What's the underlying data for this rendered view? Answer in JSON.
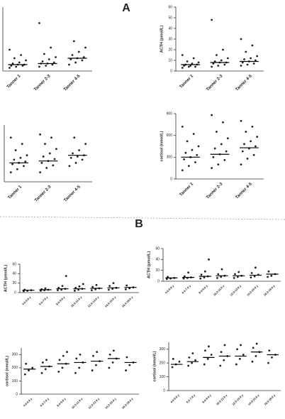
{
  "panels": [
    "A",
    "B"
  ],
  "chart_data": [
    {
      "type": "dot",
      "categories": [
        "Tanner 1",
        "Tanner 2-3",
        "Tanner 4-5"
      ],
      "ylim": [
        0,
        60
      ],
      "points": [
        [
          3,
          4,
          5,
          5,
          6,
          6,
          7,
          8,
          10,
          12,
          15,
          20
        ],
        [
          4,
          5,
          6,
          7,
          7,
          8,
          9,
          11,
          13,
          16,
          22,
          45
        ],
        [
          6,
          8,
          10,
          11,
          12,
          13,
          15,
          18,
          22,
          28
        ]
      ],
      "medians": [
        6,
        7,
        12
      ]
    },
    {
      "type": "dot",
      "y_label": "ACTH (pmol/L)",
      "categories": [
        "Tanner 1",
        "Tanner 2-3",
        "Tanner 4-5"
      ],
      "ylim": [
        0,
        60
      ],
      "yticks": [
        0,
        10,
        20,
        30,
        40,
        50,
        60
      ],
      "points": [
        [
          3,
          4,
          4,
          5,
          5,
          6,
          6,
          7,
          8,
          9,
          12,
          15
        ],
        [
          4,
          5,
          6,
          7,
          8,
          8,
          9,
          10,
          12,
          15,
          20,
          48
        ],
        [
          5,
          6,
          7,
          8,
          9,
          10,
          11,
          12,
          14,
          18,
          24,
          30
        ]
      ],
      "medians": [
        6,
        8,
        9
      ]
    },
    {
      "type": "dot",
      "categories": [
        "Tanner 1",
        "Tanner 2-3",
        "Tanner 4-5"
      ],
      "ylim": [
        0,
        900
      ],
      "points": [
        [
          150,
          200,
          250,
          280,
          300,
          320,
          350,
          380,
          420,
          500,
          600,
          700
        ],
        [
          150,
          220,
          260,
          300,
          330,
          360,
          400,
          450,
          520,
          600,
          700,
          750
        ],
        [
          250,
          300,
          350,
          380,
          400,
          420,
          450,
          500,
          600,
          700
        ]
      ],
      "medians": [
        300,
        330,
        420
      ]
    },
    {
      "type": "dot",
      "y_label": "cortisol (nmol/L)",
      "categories": [
        "Tanner 1",
        "Tanner 2-3",
        "Tanner 4-5"
      ],
      "ylim": [
        0,
        900
      ],
      "yticks": [
        0,
        300,
        600,
        900
      ],
      "points": [
        [
          120,
          180,
          230,
          270,
          300,
          330,
          360,
          400,
          450,
          520,
          620,
          720
        ],
        [
          150,
          200,
          260,
          300,
          340,
          380,
          420,
          480,
          560,
          650,
          780,
          880
        ],
        [
          200,
          280,
          330,
          380,
          420,
          450,
          480,
          520,
          580,
          650,
          720,
          800
        ]
      ],
      "medians": [
        300,
        340,
        430
      ]
    },
    {
      "type": "dot",
      "y_label": "ACTH (pmol/L)",
      "categories": [
        "4.0-5.9 y",
        "6.0-7.9 y",
        "8.0-9.9 y",
        "10.0-11.9 y",
        "12.0-13.9 y",
        "14.0-15.9 y",
        "16.0-18.9 y"
      ],
      "ylim": [
        0,
        60
      ],
      "yticks": [
        0,
        20,
        40,
        60
      ],
      "points": [
        [
          3,
          4,
          5,
          6
        ],
        [
          4,
          5,
          6,
          7,
          9
        ],
        [
          5,
          6,
          8,
          10,
          14,
          35
        ],
        [
          4,
          6,
          8,
          10,
          13,
          18
        ],
        [
          5,
          7,
          9,
          12,
          16
        ],
        [
          6,
          8,
          10,
          14,
          20
        ],
        [
          7,
          9,
          11,
          15
        ]
      ],
      "medians": [
        5,
        6,
        8,
        8,
        9,
        10,
        11
      ]
    },
    {
      "type": "dot",
      "y_label": "ACTH (pmol/L)",
      "categories": [
        "4.0-5.9 y",
        "6.0-7.9 y",
        "8.0-9.9 y",
        "10.0-11.9 y",
        "12.0-13.9 y",
        "14.0-15.9 y",
        "16.0-18.9 y"
      ],
      "ylim": [
        0,
        60
      ],
      "yticks": [
        0,
        20,
        40,
        60
      ],
      "points": [
        [
          4,
          5,
          6,
          8
        ],
        [
          5,
          6,
          7,
          9,
          16
        ],
        [
          5,
          7,
          9,
          12,
          18,
          40
        ],
        [
          6,
          8,
          10,
          13,
          22
        ],
        [
          6,
          8,
          10,
          13,
          17
        ],
        [
          7,
          9,
          12,
          15,
          25
        ],
        [
          8,
          10,
          13,
          18
        ]
      ],
      "medians": [
        6,
        7,
        9,
        10,
        10,
        11,
        13
      ]
    },
    {
      "type": "dot",
      "y_label": "cortisol (nmol/L)",
      "categories": [
        "4.0-5.9 y",
        "6.0-7.9 y",
        "8.0-9.9 y",
        "10.0-11.9 y",
        "12.0-13.9 y",
        "14.0-15.9 y",
        "16.0-18.9 y"
      ],
      "ylim": [
        0,
        350
      ],
      "yticks": [
        0,
        100,
        200,
        300
      ],
      "points": [
        [
          150,
          180,
          200,
          230
        ],
        [
          160,
          190,
          210,
          240,
          260
        ],
        [
          170,
          200,
          230,
          260,
          290,
          320
        ],
        [
          160,
          200,
          240,
          270,
          300
        ],
        [
          180,
          220,
          250,
          290,
          320
        ],
        [
          200,
          240,
          270,
          300,
          330
        ],
        [
          180,
          220,
          240,
          280
        ]
      ],
      "medians": [
        190,
        210,
        230,
        240,
        250,
        270,
        240
      ]
    },
    {
      "type": "dot",
      "y_label": "cortisol (nmol/L)",
      "categories": [
        "4.0-5.9 y",
        "6.0-7.9 y",
        "8.0-9.9 y",
        "10.0-11.9 y",
        "12.0-13.9 y",
        "14.0-15.9 y",
        "16.0-18.9 y"
      ],
      "ylim": [
        0,
        350
      ],
      "yticks": [
        0,
        100,
        200,
        300
      ],
      "points": [
        [
          170,
          190,
          210,
          230
        ],
        [
          180,
          200,
          220,
          240,
          270
        ],
        [
          190,
          230,
          260,
          290,
          320
        ],
        [
          180,
          220,
          250,
          280,
          330
        ],
        [
          190,
          230,
          260,
          300,
          330
        ],
        [
          210,
          250,
          280,
          310,
          340
        ],
        [
          200,
          240,
          260,
          290
        ]
      ],
      "medians": [
        190,
        210,
        240,
        250,
        250,
        280,
        260
      ]
    }
  ]
}
